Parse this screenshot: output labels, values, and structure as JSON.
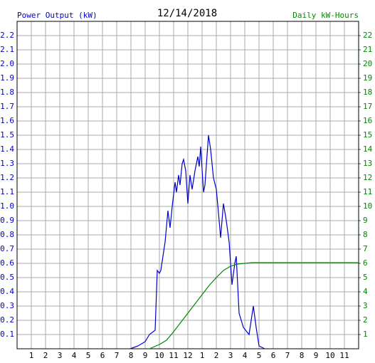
{
  "chart_data": {
    "type": "line",
    "title": "12/14/2018",
    "ylabel": "Power Output (kW)",
    "y2label": "Daily kW-Hours",
    "xlim": [
      0,
      24
    ],
    "xticks": [
      {
        "value": 1,
        "label": "1"
      },
      {
        "value": 2,
        "label": "2"
      },
      {
        "value": 3,
        "label": "3"
      },
      {
        "value": 4,
        "label": "4"
      },
      {
        "value": 5,
        "label": "5"
      },
      {
        "value": 6,
        "label": "6"
      },
      {
        "value": 7,
        "label": "7"
      },
      {
        "value": 8,
        "label": "8"
      },
      {
        "value": 9,
        "label": "9"
      },
      {
        "value": 10,
        "label": "10"
      },
      {
        "value": 11,
        "label": "11"
      },
      {
        "value": 12,
        "label": "12"
      },
      {
        "value": 13,
        "label": "1"
      },
      {
        "value": 14,
        "label": "2"
      },
      {
        "value": 15,
        "label": "3"
      },
      {
        "value": 16,
        "label": "4"
      },
      {
        "value": 17,
        "label": "5"
      },
      {
        "value": 18,
        "label": "6"
      },
      {
        "value": 19,
        "label": "7"
      },
      {
        "value": 20,
        "label": "8"
      },
      {
        "value": 21,
        "label": "9"
      },
      {
        "value": 22,
        "label": "10"
      },
      {
        "value": 23,
        "label": "11"
      }
    ],
    "ylim": [
      0,
      2.3
    ],
    "yticks": [
      0.1,
      0.2,
      0.3,
      0.4,
      0.5,
      0.6,
      0.7,
      0.8,
      0.9,
      {
        "value": 1,
        "label": "1.0"
      },
      1.1,
      1.2,
      1.3,
      1.4,
      1.5,
      1.6,
      1.7,
      1.8,
      1.9,
      {
        "value": 2,
        "label": "2.0"
      },
      2.1,
      2.2
    ],
    "y2lim": [
      0,
      23
    ],
    "y2ticks": [
      1,
      2,
      3,
      4,
      5,
      6,
      7,
      8,
      9,
      10,
      11,
      12,
      13,
      14,
      15,
      16,
      17,
      18,
      19,
      20,
      21,
      22
    ],
    "grid": true,
    "series": [
      {
        "color": "#0000cc",
        "x": [
          7.95,
          8.5,
          9.0,
          9.3,
          9.7,
          9.85,
          10.0,
          10.1,
          10.4,
          10.6,
          10.75,
          10.9,
          11.1,
          11.2,
          11.35,
          11.45,
          11.6,
          11.7,
          11.85,
          12.0,
          12.15,
          12.3,
          12.5,
          12.7,
          12.8,
          12.9,
          13.1,
          13.2,
          13.45,
          13.6,
          13.8,
          14.0,
          14.2,
          14.3,
          14.5,
          14.7,
          14.9,
          15.1,
          15.3,
          15.4,
          15.6,
          15.9,
          16.3,
          16.6,
          16.8,
          17.0,
          17.4
        ],
        "values": [
          0.0,
          0.02,
          0.05,
          0.1,
          0.13,
          0.55,
          0.53,
          0.55,
          0.75,
          0.97,
          0.85,
          1.0,
          1.17,
          1.1,
          1.22,
          1.15,
          1.3,
          1.33,
          1.25,
          1.02,
          1.22,
          1.12,
          1.25,
          1.35,
          1.28,
          1.42,
          1.1,
          1.15,
          1.5,
          1.4,
          1.2,
          1.12,
          0.9,
          0.78,
          1.02,
          0.9,
          0.75,
          0.45,
          0.6,
          0.65,
          0.25,
          0.15,
          0.1,
          0.3,
          0.15,
          0.02,
          0.0
        ]
      },
      {
        "color": "#008800",
        "axis": "y2",
        "x": [
          9.3,
          10.0,
          10.5,
          11.0,
          11.5,
          12.0,
          12.5,
          13.0,
          13.5,
          14.0,
          14.5,
          15.0,
          15.5,
          16.0,
          16.5,
          24.0
        ],
        "values": [
          0.0,
          0.3,
          0.6,
          1.2,
          1.85,
          2.5,
          3.15,
          3.8,
          4.45,
          5.0,
          5.5,
          5.8,
          5.95,
          6.0,
          6.05,
          6.05
        ]
      }
    ]
  }
}
